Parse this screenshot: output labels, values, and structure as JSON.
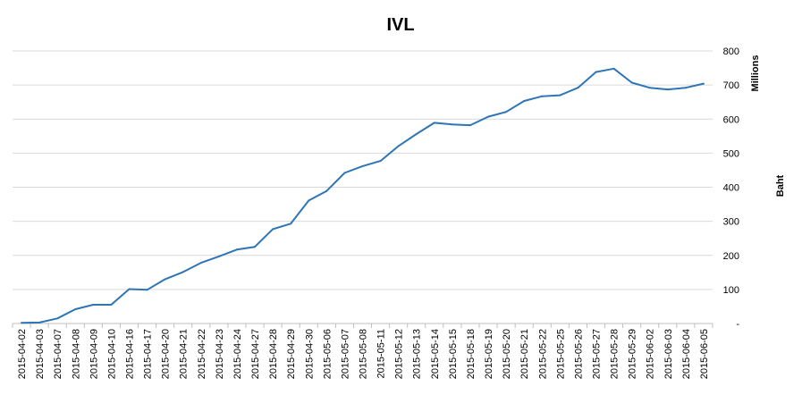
{
  "chart_data": {
    "type": "line",
    "title": "IVL",
    "ylabel": "Baht",
    "ylabel_unit": "Millions",
    "xlabel": "",
    "ylim": [
      0,
      800
    ],
    "y_ticks": [
      "-",
      "100",
      "200",
      "300",
      "400",
      "500",
      "600",
      "700",
      "800"
    ],
    "grid": true,
    "y_axis_position": "right",
    "line_color": "#2e75b6",
    "categories": [
      "2015-04-02",
      "2015-04-03",
      "2015-04-07",
      "2015-04-08",
      "2015-04-09",
      "2015-04-10",
      "2015-04-16",
      "2015-04-17",
      "2015-04-20",
      "2015-04-21",
      "2015-04-22",
      "2015-04-23",
      "2015-04-24",
      "2015-04-27",
      "2015-04-28",
      "2015-04-29",
      "2015-04-30",
      "2015-05-06",
      "2015-05-07",
      "2015-05-08",
      "2015-05-11",
      "2015-05-12",
      "2015-05-13",
      "2015-05-14",
      "2015-05-15",
      "2015-05-18",
      "2015-05-19",
      "2015-05-20",
      "2015-05-21",
      "2015-05-22",
      "2015-05-25",
      "2015-05-26",
      "2015-05-27",
      "2015-05-28",
      "2015-05-29",
      "2015-06-02",
      "2015-06-03",
      "2015-06-04",
      "2015-06-05"
    ],
    "series": [
      {
        "values": [
          2,
          3,
          15,
          42,
          55,
          55,
          101,
          99,
          130,
          151,
          178,
          197,
          217,
          225,
          277,
          293,
          361,
          389,
          442,
          462,
          477,
          521,
          556,
          589,
          584,
          582,
          607,
          621,
          653,
          667,
          670,
          692,
          738,
          748,
          707,
          692,
          687,
          692,
          704
        ]
      }
    ]
  }
}
